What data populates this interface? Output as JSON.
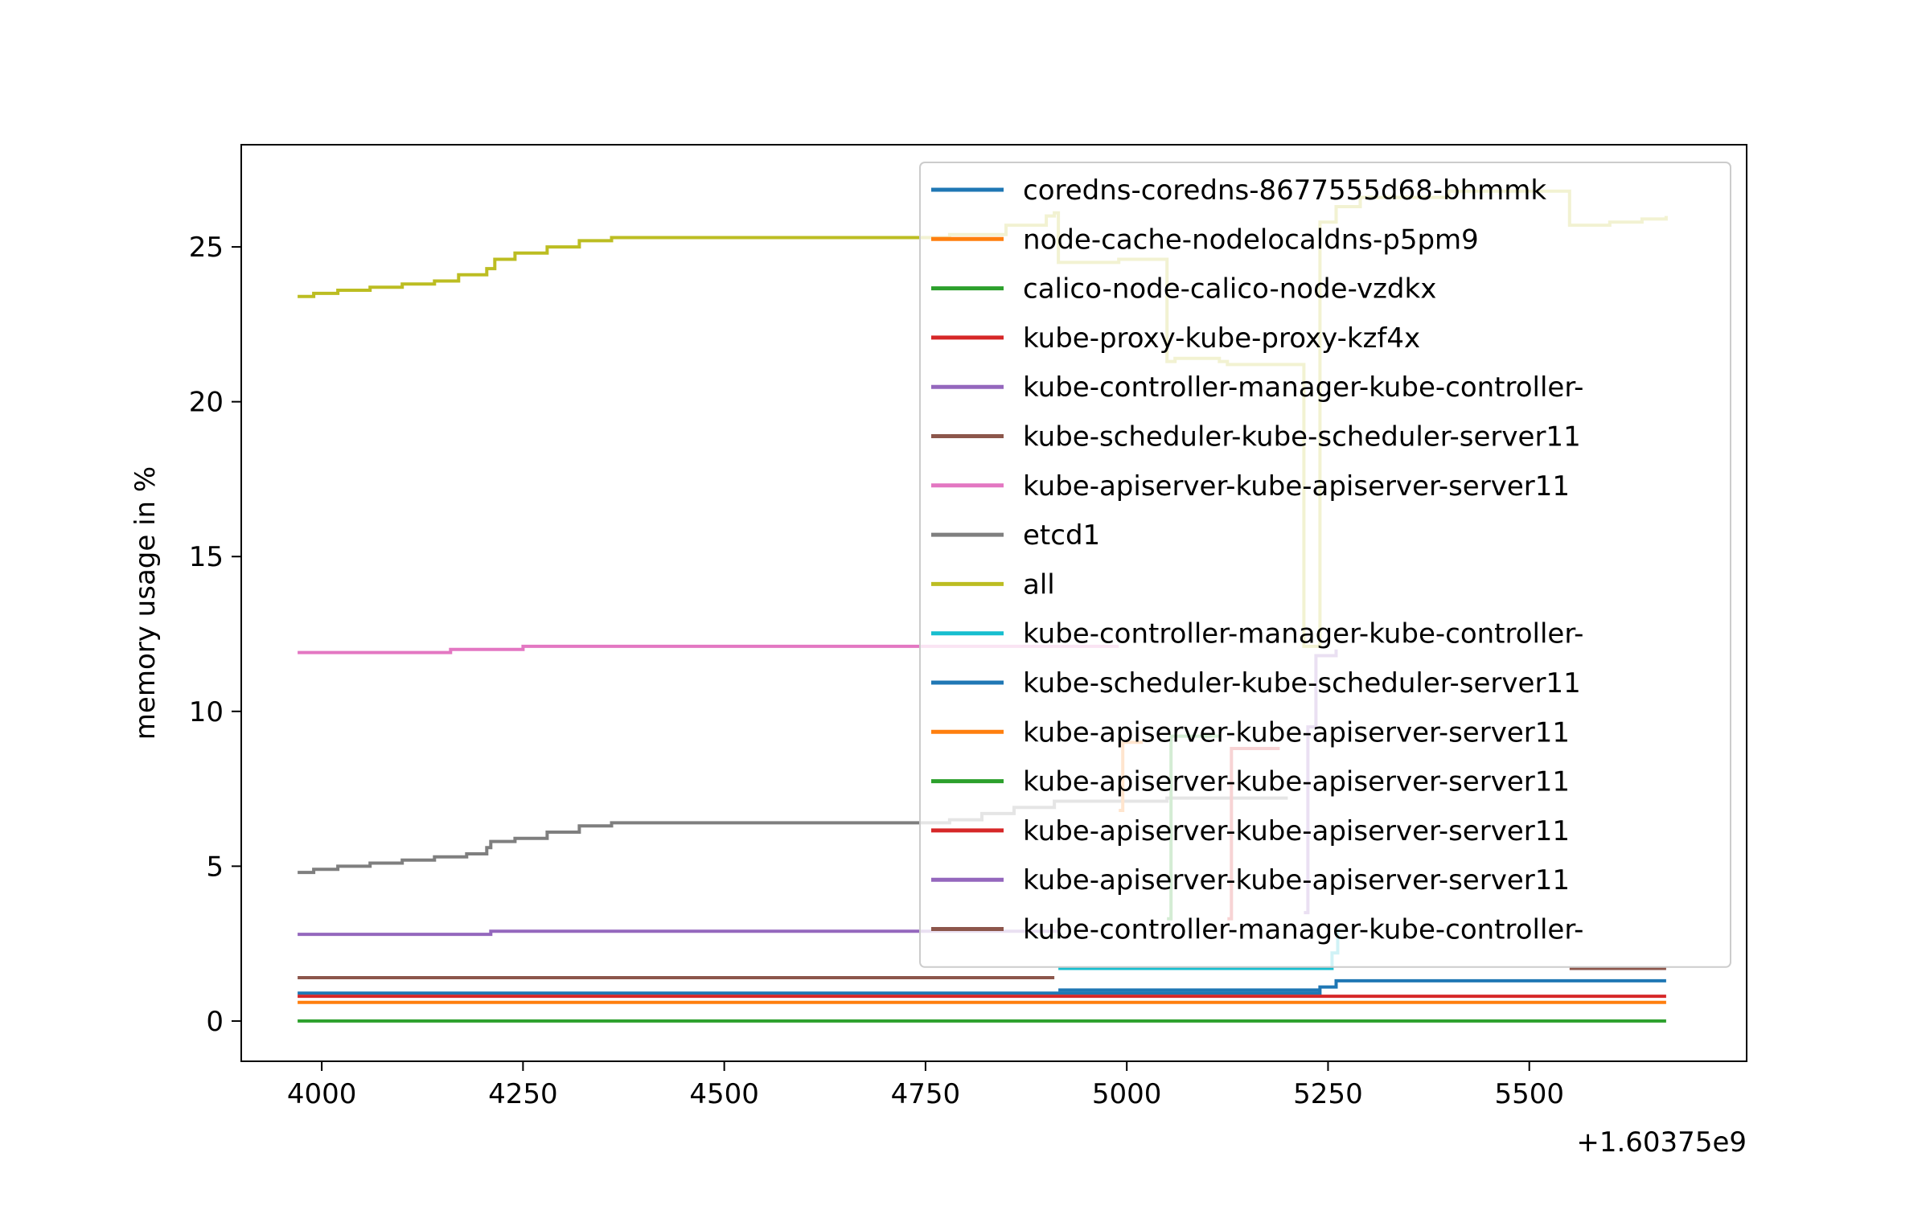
{
  "chart_data": {
    "type": "line",
    "title": "",
    "xlabel": "",
    "ylabel": "memory usage in %",
    "x_offset_label": "+1.60375e9",
    "xlim": [
      3900,
      5770
    ],
    "ylim": [
      -1.3,
      28.3
    ],
    "x_ticks": [
      4000,
      4250,
      4500,
      4750,
      5000,
      5250,
      5500
    ],
    "y_ticks": [
      0,
      5,
      10,
      15,
      20,
      25
    ],
    "grid": false,
    "legend_position": "top-right",
    "series": [
      {
        "name": "coredns-coredns-8677555d68-bhmmk",
        "color": "#1f77b4",
        "x": [
          3970,
          4915,
          5230,
          5240,
          5260,
          5670
        ],
        "y": [
          0.9,
          0.9,
          0.9,
          1.1,
          1.3,
          1.3
        ]
      },
      {
        "name": "node-cache-nodelocaldns-p5pm9",
        "color": "#ff7f0e",
        "x": [
          3970,
          5670
        ],
        "y": [
          0.6,
          0.6
        ]
      },
      {
        "name": "calico-node-calico-node-vzdkx",
        "color": "#2ca02c",
        "x": [
          3970,
          5670
        ],
        "y": [
          0.0,
          0.0
        ]
      },
      {
        "name": "kube-proxy-kube-proxy-kzf4x",
        "color": "#d62728",
        "x": [
          3970,
          5670
        ],
        "y": [
          0.8,
          0.8
        ]
      },
      {
        "name": "kube-controller-manager-kube-controller-",
        "color": "#9467bd",
        "x": [
          3970,
          4205,
          4210,
          4915
        ],
        "y": [
          2.8,
          2.8,
          2.9,
          2.9
        ]
      },
      {
        "name": "kube-scheduler-kube-scheduler-server11",
        "color": "#8c564b",
        "x": [
          3970,
          4910
        ],
        "y": [
          1.4,
          1.4
        ]
      },
      {
        "name": "kube-apiserver-kube-apiserver-server11",
        "color": "#e377c2",
        "x": [
          3970,
          4150,
          4160,
          4240,
          4250,
          4990
        ],
        "y": [
          11.9,
          11.9,
          12.0,
          12.0,
          12.1,
          12.1
        ]
      },
      {
        "name": "etcd1",
        "color": "#7f7f7f",
        "x": [
          3970,
          3990,
          4020,
          4060,
          4100,
          4140,
          4180,
          4205,
          4210,
          4240,
          4280,
          4320,
          4360,
          4570,
          4780,
          4820,
          4860,
          4910,
          5050,
          5200
        ],
        "y": [
          4.8,
          4.9,
          5.0,
          5.1,
          5.2,
          5.3,
          5.4,
          5.6,
          5.8,
          5.9,
          6.1,
          6.3,
          6.4,
          6.4,
          6.5,
          6.7,
          6.9,
          7.1,
          7.2,
          7.2
        ]
      },
      {
        "name": "all",
        "color": "#bcbd22",
        "x": [
          3970,
          3990,
          4020,
          4060,
          4100,
          4140,
          4170,
          4205,
          4215,
          4240,
          4280,
          4320,
          4360,
          4570,
          4780,
          4850,
          4900,
          4910,
          4915,
          4990,
          5050,
          5060,
          5115,
          5125,
          5180,
          5220,
          5240,
          5260,
          5290,
          5400,
          5550,
          5600,
          5640,
          5670
        ],
        "y": [
          23.4,
          23.5,
          23.6,
          23.7,
          23.8,
          23.9,
          24.1,
          24.3,
          24.6,
          24.8,
          25.0,
          25.2,
          25.3,
          25.3,
          25.4,
          25.7,
          26.0,
          26.1,
          24.5,
          24.6,
          21.3,
          21.4,
          21.3,
          21.2,
          21.2,
          12.1,
          25.8,
          26.3,
          26.6,
          26.8,
          25.7,
          25.8,
          25.9,
          26.0
        ]
      },
      {
        "name": "kube-controller-manager-kube-controller-",
        "color": "#17becf",
        "x": [
          4915,
          5240,
          5255,
          5262
        ],
        "y": [
          1.7,
          1.7,
          2.2,
          3.0
        ]
      },
      {
        "name": "kube-scheduler-kube-scheduler-server11",
        "color": "#1f77b4",
        "x": [
          4915,
          5240
        ],
        "y": [
          1.0,
          1.0
        ]
      },
      {
        "name": "kube-apiserver-kube-apiserver-server11",
        "color": "#ff7f0e",
        "x": [
          4990,
          4995,
          5020
        ],
        "y": [
          6.8,
          9.0,
          9.0
        ]
      },
      {
        "name": "kube-apiserver-kube-apiserver-server11",
        "color": "#2ca02c",
        "x": [
          5050,
          5055,
          5115
        ],
        "y": [
          3.3,
          9.2,
          9.2
        ]
      },
      {
        "name": "kube-apiserver-kube-apiserver-server11",
        "color": "#d62728",
        "x": [
          5125,
          5130,
          5190
        ],
        "y": [
          3.3,
          8.8,
          8.8
        ]
      },
      {
        "name": "kube-apiserver-kube-apiserver-server11",
        "color": "#9467bd",
        "x": [
          5220,
          5225,
          5235,
          5260
        ],
        "y": [
          3.5,
          9.5,
          11.8,
          12.0
        ]
      },
      {
        "name": "kube-controller-manager-kube-controller-",
        "color": "#8c564b",
        "x": [
          5550,
          5670
        ],
        "y": [
          1.7,
          1.7
        ]
      }
    ]
  }
}
